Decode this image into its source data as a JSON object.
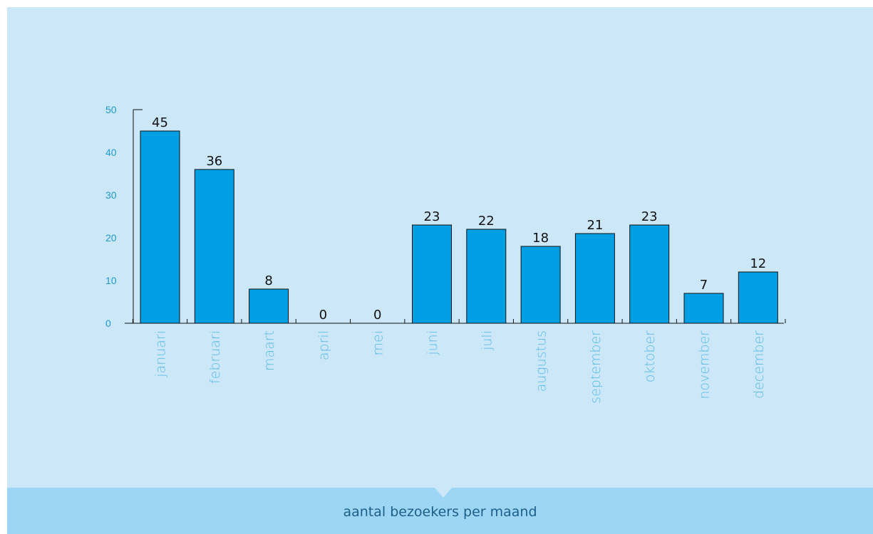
{
  "caption": "aantal bezoekers per maand",
  "colors": {
    "background": "#cce8f8",
    "caption_band": "#9cd6f4",
    "bar_fill": "#009fe3",
    "bar_stroke": "#111111",
    "tick_label": "#1e9ad6",
    "category_label": "#5bbbe6",
    "caption_text": "#1b5f8a"
  },
  "chart_data": {
    "type": "bar",
    "title": "",
    "xlabel": "",
    "ylabel": "",
    "ylim": [
      0,
      50
    ],
    "yticks": [
      "0",
      "10",
      "20",
      "30",
      "40",
      "50"
    ],
    "grid": false,
    "categories": [
      "januari",
      "februari",
      "maart",
      "april",
      "mei",
      "juni",
      "juli",
      "augustus",
      "september",
      "oktober",
      "november",
      "december"
    ],
    "values": [
      45,
      36,
      8,
      0,
      0,
      23,
      22,
      18,
      21,
      23,
      7,
      12
    ],
    "data_labels": [
      "45",
      "36",
      "8",
      "0",
      "0",
      "23",
      "22",
      "18",
      "21",
      "23",
      "7",
      "12"
    ]
  }
}
